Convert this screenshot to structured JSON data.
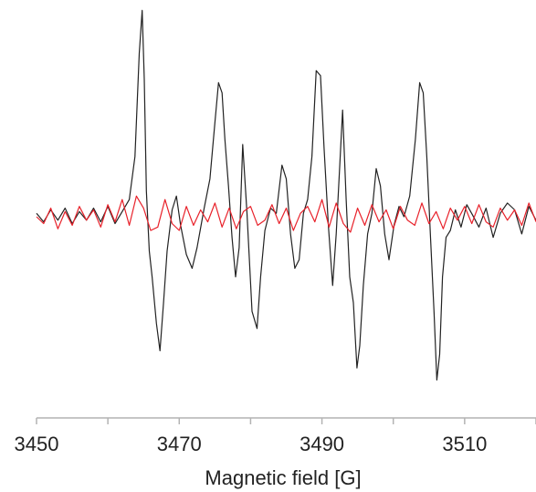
{
  "chart_data": {
    "type": "line",
    "title": "",
    "xlabel": "Magnetic field [G]",
    "ylabel": "",
    "xlim": [
      3450,
      3520
    ],
    "ylim": [
      -1.1,
      1.2
    ],
    "x_ticks": [
      3450,
      3460,
      3470,
      3480,
      3490,
      3500,
      3510,
      3520
    ],
    "x_tick_labels": [
      "3450",
      "3470",
      "3490",
      "3510"
    ],
    "x_tick_label_values": [
      3450,
      3470,
      3490,
      3510
    ],
    "grid": false,
    "legend": "none",
    "series": [
      {
        "color": "#222222",
        "x": [
          3450.0,
          3451.0,
          3452.0,
          3453.0,
          3454.0,
          3455.0,
          3456.0,
          3457.0,
          3458.0,
          3459.0,
          3460.0,
          3461.0,
          3462.0,
          3463.0,
          3463.8,
          3464.4,
          3464.8,
          3465.1,
          3465.4,
          3465.8,
          3466.2,
          3466.8,
          3467.3,
          3467.8,
          3468.3,
          3469.0,
          3469.6,
          3470.2,
          3471.0,
          3471.8,
          3472.5,
          3473.5,
          3474.3,
          3475.0,
          3475.5,
          3476.0,
          3476.4,
          3476.9,
          3477.4,
          3477.9,
          3478.4,
          3478.9,
          3479.5,
          3480.2,
          3480.9,
          3481.4,
          3482.0,
          3482.8,
          3483.6,
          3484.4,
          3485.0,
          3485.6,
          3486.2,
          3486.8,
          3487.4,
          3488.0,
          3488.6,
          3489.2,
          3489.8,
          3490.3,
          3490.9,
          3491.5,
          3492.0,
          3492.5,
          3492.9,
          3493.4,
          3493.9,
          3494.4,
          3494.9,
          3495.3,
          3495.8,
          3496.4,
          3497.0,
          3497.6,
          3498.2,
          3498.8,
          3499.4,
          3500.1,
          3500.8,
          3501.5,
          3502.3,
          3503.1,
          3503.7,
          3504.2,
          3504.7,
          3505.2,
          3505.7,
          3506.1,
          3506.5,
          3506.9,
          3507.4,
          3508.0,
          3508.7,
          3509.5,
          3510.3,
          3511.1,
          3512.0,
          3513.0,
          3514.0,
          3515.0,
          3516.0,
          3517.0,
          3518.0,
          3519.0,
          3520.0
        ],
        "values": [
          0.02,
          -0.03,
          0.04,
          -0.02,
          0.05,
          -0.04,
          0.03,
          -0.02,
          0.05,
          -0.03,
          0.06,
          -0.04,
          0.03,
          0.1,
          0.35,
          0.95,
          1.2,
          0.8,
          0.15,
          -0.2,
          -0.35,
          -0.62,
          -0.78,
          -0.5,
          -0.2,
          0.04,
          0.12,
          -0.05,
          -0.22,
          -0.3,
          -0.18,
          0.05,
          0.22,
          0.55,
          0.78,
          0.72,
          0.45,
          0.18,
          -0.12,
          -0.35,
          -0.18,
          0.42,
          0.02,
          -0.55,
          -0.65,
          -0.35,
          -0.08,
          0.05,
          0.02,
          0.3,
          0.22,
          -0.1,
          -0.3,
          -0.25,
          0.02,
          0.1,
          0.35,
          0.85,
          0.82,
          0.4,
          -0.05,
          -0.4,
          -0.1,
          0.3,
          0.62,
          0.1,
          -0.35,
          -0.5,
          -0.88,
          -0.75,
          -0.4,
          -0.1,
          0.02,
          0.28,
          0.18,
          -0.1,
          -0.25,
          -0.05,
          0.06,
          0.0,
          0.12,
          0.45,
          0.78,
          0.72,
          0.35,
          -0.1,
          -0.55,
          -0.95,
          -0.8,
          -0.35,
          -0.12,
          -0.08,
          0.04,
          -0.06,
          0.07,
          0.01,
          -0.06,
          0.05,
          -0.12,
          0.02,
          0.08,
          0.04,
          -0.1,
          0.06,
          -0.02
        ]
      },
      {
        "color": "#e8212a",
        "x": [
          3450.0,
          3451.0,
          3452.0,
          3453.0,
          3454.0,
          3455.0,
          3456.0,
          3457.0,
          3458.0,
          3459.0,
          3460.0,
          3461.0,
          3462.0,
          3463.0,
          3464.0,
          3465.0,
          3466.0,
          3467.0,
          3468.0,
          3469.0,
          3470.0,
          3471.0,
          3472.0,
          3473.0,
          3474.0,
          3475.0,
          3476.0,
          3477.0,
          3478.0,
          3479.0,
          3480.0,
          3481.0,
          3482.0,
          3483.0,
          3484.0,
          3485.0,
          3486.0,
          3487.0,
          3488.0,
          3489.0,
          3490.0,
          3491.0,
          3492.0,
          3493.0,
          3494.0,
          3495.0,
          3496.0,
          3497.0,
          3498.0,
          3499.0,
          3500.0,
          3501.0,
          3502.0,
          3503.0,
          3504.0,
          3505.0,
          3506.0,
          3507.0,
          3508.0,
          3509.0,
          3510.0,
          3511.0,
          3512.0,
          3513.0,
          3514.0,
          3515.0,
          3516.0,
          3517.0,
          3518.0,
          3519.0,
          3520.0
        ],
        "values": [
          0.0,
          -0.04,
          0.05,
          -0.07,
          0.03,
          -0.05,
          0.06,
          -0.02,
          0.04,
          -0.06,
          0.07,
          -0.03,
          0.1,
          -0.05,
          0.12,
          0.05,
          -0.08,
          -0.06,
          0.1,
          -0.04,
          -0.08,
          0.06,
          -0.05,
          0.04,
          -0.03,
          0.08,
          -0.06,
          0.05,
          -0.07,
          0.03,
          0.06,
          -0.05,
          -0.02,
          0.07,
          -0.04,
          0.05,
          -0.08,
          0.02,
          0.06,
          -0.03,
          0.1,
          -0.06,
          0.08,
          -0.04,
          -0.09,
          0.05,
          -0.05,
          0.07,
          -0.03,
          0.04,
          -0.07,
          0.06,
          -0.02,
          -0.05,
          0.08,
          -0.04,
          0.03,
          -0.07,
          0.05,
          -0.02,
          0.06,
          -0.04,
          0.07,
          -0.03,
          -0.06,
          0.05,
          -0.02,
          0.04,
          -0.05,
          0.08,
          -0.03
        ]
      }
    ]
  }
}
